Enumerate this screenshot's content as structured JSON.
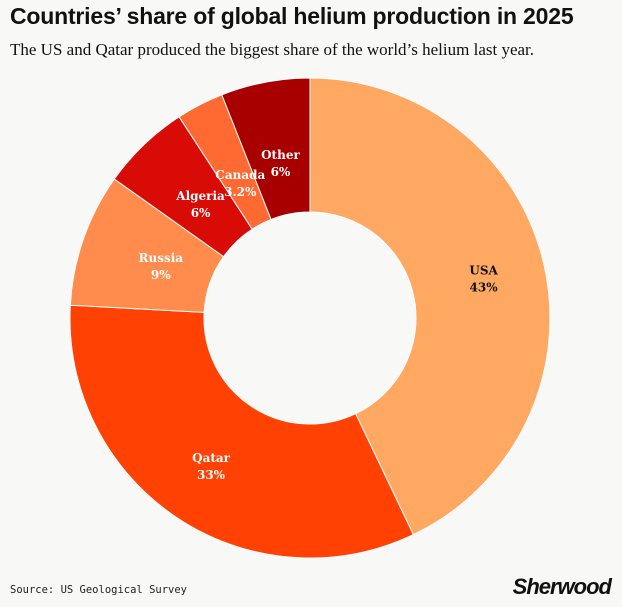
{
  "chart_data": {
    "type": "pie",
    "title": "Countries’ share of global helium production in 2025",
    "subtitle": "The US and Qatar produced the biggest share of the world’s helium last year.",
    "slices": [
      {
        "label": "USA",
        "value": 43,
        "value_label": "43%",
        "color": "#ffa862",
        "text_color": "#111111"
      },
      {
        "label": "Qatar",
        "value": 33,
        "value_label": "33%",
        "color": "#ff4204",
        "text_color": "#ffffff"
      },
      {
        "label": "Russia",
        "value": 9,
        "value_label": "9%",
        "color": "#ff8c4c",
        "text_color": "#ffffff"
      },
      {
        "label": "Algeria",
        "value": 6,
        "value_label": "6%",
        "color": "#d90b06",
        "text_color": "#ffffff"
      },
      {
        "label": "Canada",
        "value": 3.2,
        "value_label": "3.2%",
        "color": "#ff6a33",
        "text_color": "#ffffff"
      },
      {
        "label": "Other",
        "value": 6,
        "value_label": "6%",
        "color": "#a80000",
        "text_color": "#ffffff"
      }
    ]
  },
  "footer": {
    "source": "Source: US Geological Survey",
    "logo": "Sherwood"
  }
}
